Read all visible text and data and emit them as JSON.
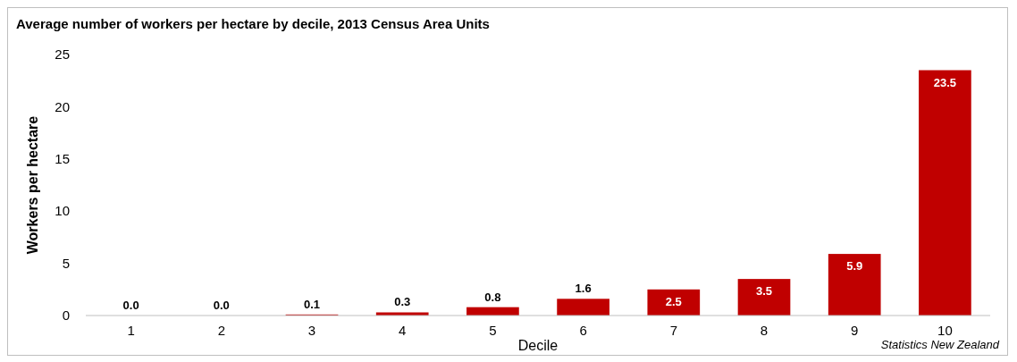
{
  "chart_data": {
    "type": "bar",
    "title": "Average number of workers per hectare by decile, 2013 Census Area Units",
    "xlabel": "Decile",
    "ylabel": "Workers per hectare",
    "categories": [
      "1",
      "2",
      "3",
      "4",
      "5",
      "6",
      "7",
      "8",
      "9",
      "10"
    ],
    "values": [
      0.0,
      0.0,
      0.1,
      0.3,
      0.8,
      1.6,
      2.5,
      3.5,
      5.9,
      23.5
    ],
    "value_labels": [
      "0.0",
      "0.0",
      "0.1",
      "0.3",
      "0.8",
      "1.6",
      "2.5",
      "3.5",
      "5.9",
      "23.5"
    ],
    "color": "#c00000",
    "ylim": [
      0,
      25
    ],
    "yticks": [
      0,
      5,
      10,
      15,
      20,
      25
    ],
    "grid": false,
    "annotations": [
      "Statistics New Zealand"
    ]
  }
}
